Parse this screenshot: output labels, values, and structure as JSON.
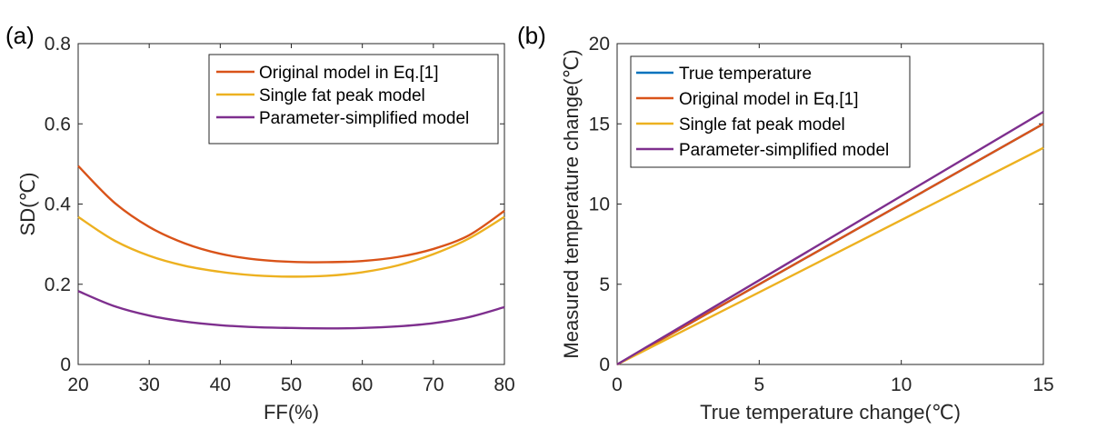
{
  "chart_data": [
    {
      "type": "line",
      "panel_label": "(a)",
      "title": "",
      "xlabel": "FF(%)",
      "ylabel": "SD(℃)",
      "xlim": [
        20,
        80
      ],
      "ylim": [
        0,
        0.8
      ],
      "xticks": [
        20,
        30,
        40,
        50,
        60,
        70,
        80
      ],
      "yticks": [
        0,
        0.2,
        0.4,
        0.6,
        0.8
      ],
      "xtick_labels": [
        "20",
        "30",
        "40",
        "50",
        "60",
        "70",
        "80"
      ],
      "ytick_labels": [
        "0",
        "0.2",
        "0.4",
        "0.6",
        "0.8"
      ],
      "grid": false,
      "legend_position": "top-right",
      "x": [
        20,
        25,
        30,
        35,
        40,
        45,
        50,
        55,
        60,
        65,
        70,
        75,
        80
      ],
      "series": [
        {
          "name": "Original model in Eq.[1]",
          "color": "#D95319",
          "values": [
            0.495,
            0.405,
            0.343,
            0.302,
            0.276,
            0.262,
            0.256,
            0.255,
            0.258,
            0.268,
            0.288,
            0.322,
            0.383
          ]
        },
        {
          "name": "Single fat peak model",
          "color": "#EDB120",
          "values": [
            0.368,
            0.31,
            0.271,
            0.246,
            0.231,
            0.222,
            0.219,
            0.221,
            0.23,
            0.247,
            0.275,
            0.314,
            0.368
          ]
        },
        {
          "name": "Parameter-simplified model",
          "color": "#7E2F8E",
          "values": [
            0.183,
            0.146,
            0.122,
            0.107,
            0.098,
            0.093,
            0.091,
            0.09,
            0.091,
            0.095,
            0.103,
            0.118,
            0.143
          ]
        }
      ]
    },
    {
      "type": "line",
      "panel_label": "(b)",
      "title": "",
      "xlabel": "True temperature change(℃)",
      "ylabel": "Measured temperature change(℃)",
      "xlim": [
        0,
        15
      ],
      "ylim": [
        0,
        20
      ],
      "xticks": [
        0,
        5,
        10,
        15
      ],
      "yticks": [
        0,
        5,
        10,
        15,
        20
      ],
      "xtick_labels": [
        "0",
        "5",
        "10",
        "15"
      ],
      "ytick_labels": [
        "0",
        "5",
        "10",
        "15",
        "20"
      ],
      "grid": false,
      "legend_position": "top-left",
      "x": [
        0,
        15
      ],
      "series": [
        {
          "name": "True temperature",
          "color": "#0072BD",
          "values": [
            0,
            15
          ]
        },
        {
          "name": "Original model in Eq.[1]",
          "color": "#D95319",
          "values": [
            0,
            15
          ]
        },
        {
          "name": "Single fat peak model",
          "color": "#EDB120",
          "values": [
            0,
            13.5
          ]
        },
        {
          "name": "Parameter-simplified model",
          "color": "#7E2F8E",
          "values": [
            0,
            15.75
          ]
        }
      ]
    }
  ]
}
